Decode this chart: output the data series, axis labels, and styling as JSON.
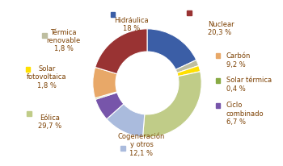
{
  "values": [
    18.0,
    1.8,
    1.8,
    29.7,
    12.1,
    6.7,
    0.4,
    9.2,
    20.3
  ],
  "colors": [
    "#3B5EA6",
    "#BEBEA0",
    "#FFE000",
    "#C0CC88",
    "#AABBDD",
    "#7755AA",
    "#88AA44",
    "#E8A868",
    "#993333"
  ],
  "slice_labels": [
    "Hidráulica\n18 %",
    "Térmica\nrenovable\n1,8 %",
    "Solar\nfotovoltaica\n1,8 %",
    "Eólica\n29,7 %",
    "Cogeneración\ny otros\n12,1 %",
    "Ciclo\ncombinado\n6,7 %",
    "Solar térmica\n0,4 %",
    "Carbón\n9,2 %",
    "Nuclear\n20,3 %"
  ],
  "figsize": [
    3.5,
    2.06
  ],
  "dpi": 100,
  "donut_width": 0.42,
  "font_size": 6.0,
  "label_color": "#7B3F00"
}
